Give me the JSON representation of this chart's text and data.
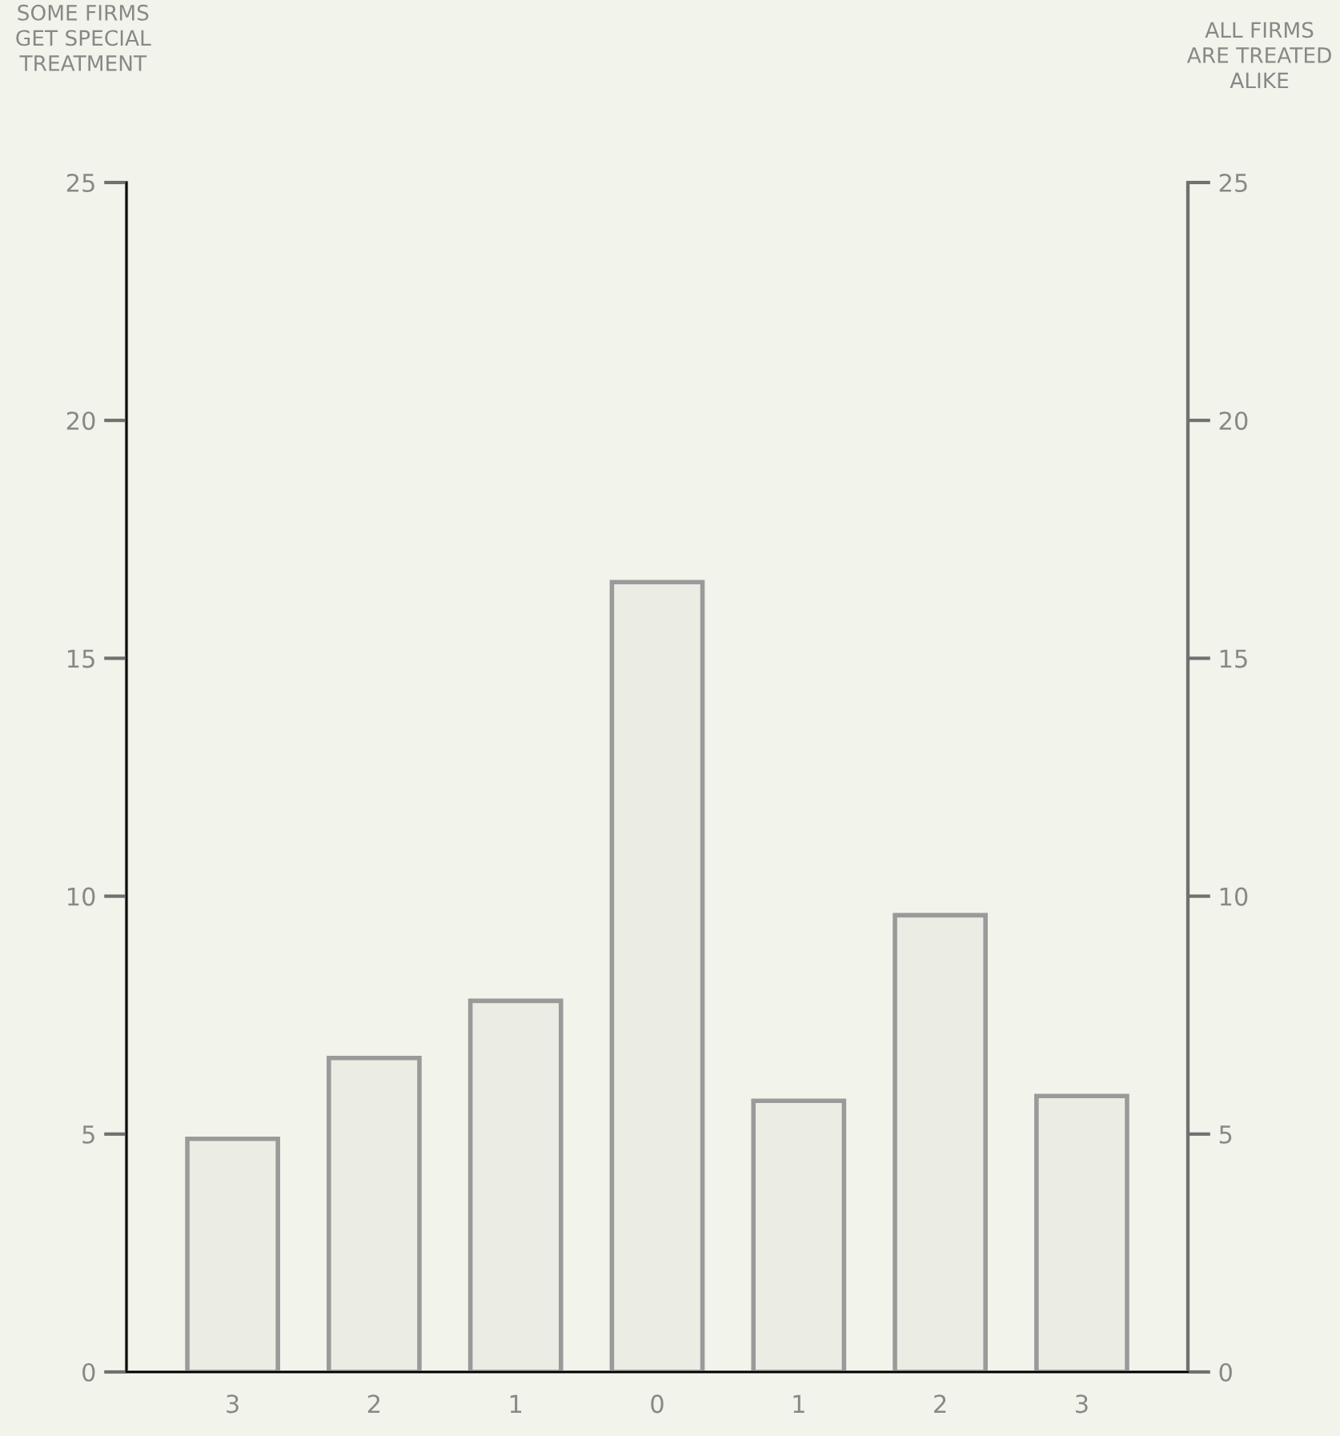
{
  "chart_data": {
    "type": "bar",
    "ylabel": "SOME FIRMS\nGET SPECIAL\nTREATMENT",
    "y2label": "ALL FIRMS\nARE TREATED\nALIKE",
    "categories": [
      "3",
      "2",
      "1",
      "0",
      "1",
      "2",
      "3"
    ],
    "values": [
      4.9,
      6.6,
      7.8,
      16.6,
      5.7,
      9.6,
      5.8
    ],
    "color": "#ebece4",
    "ylim": [
      0,
      25
    ],
    "yticks": [
      0,
      5,
      10,
      15,
      20,
      25
    ],
    "y2lim": [
      0,
      25
    ],
    "y2ticks": [
      0,
      5,
      10,
      15,
      20,
      25
    ],
    "grid": false,
    "legend": false
  }
}
